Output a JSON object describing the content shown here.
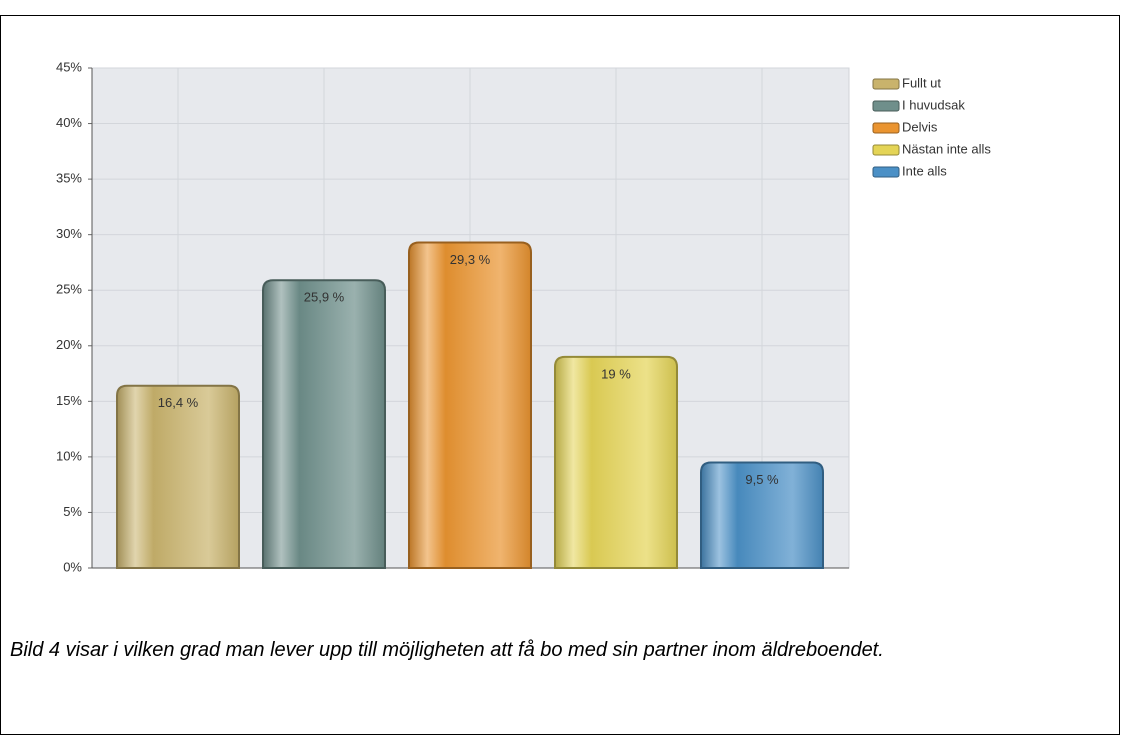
{
  "chart_data": {
    "type": "bar",
    "categories": [
      "Fullt ut",
      "I huvudsak",
      "Delvis",
      "Nästan inte alls",
      "Inte alls"
    ],
    "values": [
      16.4,
      25.9,
      29.3,
      19,
      9.5
    ],
    "value_labels": [
      "16,4 %",
      "25,9 %",
      "29,3 %",
      "19 %",
      "9,5 %"
    ],
    "colors": [
      "#c9b36c",
      "#6f8f8b",
      "#ea9430",
      "#e4d456",
      "#4b90c6"
    ],
    "ylim": [
      0,
      45
    ],
    "yticks": [
      {
        "value": 0,
        "label": "0%"
      },
      {
        "value": 5,
        "label": "5%"
      },
      {
        "value": 10,
        "label": "10%"
      },
      {
        "value": 15,
        "label": "15%"
      },
      {
        "value": 20,
        "label": "20%"
      },
      {
        "value": 25,
        "label": "25%"
      },
      {
        "value": 30,
        "label": "30%"
      },
      {
        "value": 35,
        "label": "35%"
      },
      {
        "value": 40,
        "label": "40%"
      },
      {
        "value": 45,
        "label": "45%"
      }
    ],
    "grid": true,
    "legend": "right"
  },
  "caption": "Bild 4 visar i vilken grad man lever upp till möjligheten att få bo med sin partner inom äldreboendet."
}
